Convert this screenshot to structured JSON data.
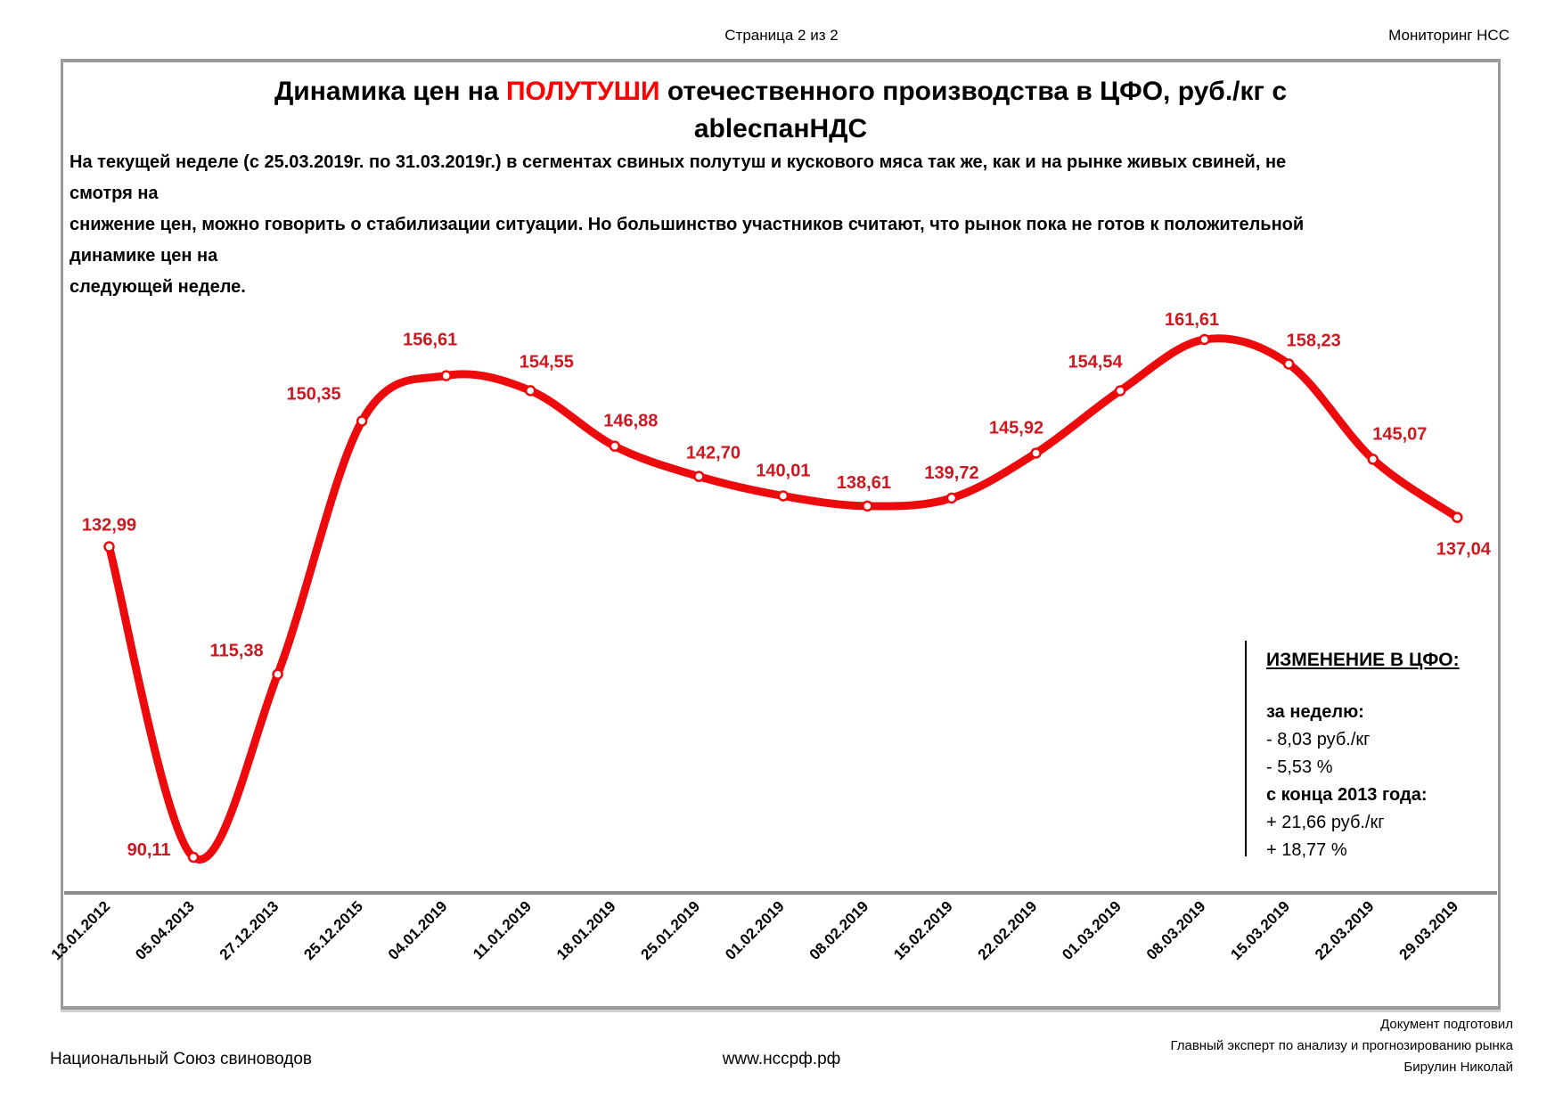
{
  "header": {
    "page": "Страница 2 из 2",
    "right": "Мониторинг НСС"
  },
  "title": {
    "prefix": "Динамика цен на ",
    "highlight": "ПОЛУТУШИ",
    "suffix": " отечественного производства в ЦФО, руб./кг с",
    "line2": "НДС"
  },
  "intro": {
    "lines": [
      "На текущей неделе (с 25.03.2019г. по 31.03.2019г.)  в сегментах свиных полутуш и кускового мяса так же, как и на рынке живых свиней, не смотря на",
      "снижение цен, можно говорить о стабилизации ситуации. Но большинство участников считают, что рынок пока не готов к положительной динамике цен на",
      "следующей неделе."
    ]
  },
  "chart_data": {
    "type": "line",
    "title": "Динамика цен на ПОЛУТУШИ отечественного производства в ЦФО, руб./кг с НДС",
    "xlabel": "",
    "ylabel": "руб./кг с НДС",
    "categories": [
      "13.01.2012",
      "05.04.2013",
      "27.12.2013",
      "25.12.2015",
      "04.01.2019",
      "11.01.2019",
      "18.01.2019",
      "25.01.2019",
      "01.02.2019",
      "08.02.2019",
      "15.02.2019",
      "22.02.2019",
      "01.03.2019",
      "08.03.2019",
      "15.03.2019",
      "22.03.2019",
      "29.03.2019"
    ],
    "values": [
      132.99,
      90.11,
      115.38,
      150.35,
      156.61,
      154.55,
      146.88,
      142.7,
      140.01,
      138.61,
      139.72,
      145.92,
      154.54,
      161.61,
      158.23,
      145.07,
      137.04
    ],
    "point_labels": [
      "132,99",
      "90,11",
      "115,38",
      "150,35",
      "156,61",
      "154,55",
      "146,88",
      "142,70",
      "140,01",
      "138,61",
      "139,72",
      "145,92",
      "154,54",
      "161,61",
      "158,23",
      "145,07",
      "137,04"
    ],
    "line_color": "#ed0a0c",
    "label_color": "#cc1820",
    "marker": "open-circle-white-fill",
    "grid": false,
    "legend": false,
    "smooth": true,
    "ylim": [
      70,
      175
    ]
  },
  "change_box": {
    "title": "ИЗМЕНЕНИЕ В ЦФО:",
    "week_label": "за неделю:",
    "week_rub": "- 8,03  руб./кг",
    "week_pct": "- 5,53 %",
    "since_label": "с конца 2013 года:",
    "since_rub": "+ 21,66 руб./кг",
    "since_pct": "+ 18,77 %"
  },
  "footer": {
    "left": "Национальный Союз свиноводов",
    "center": "www.нссрф.рф",
    "right_lines": [
      "Документ подготовил",
      "Главный эксперт по анализу и прогнозированию рынка",
      "Бирулин Николай"
    ]
  }
}
